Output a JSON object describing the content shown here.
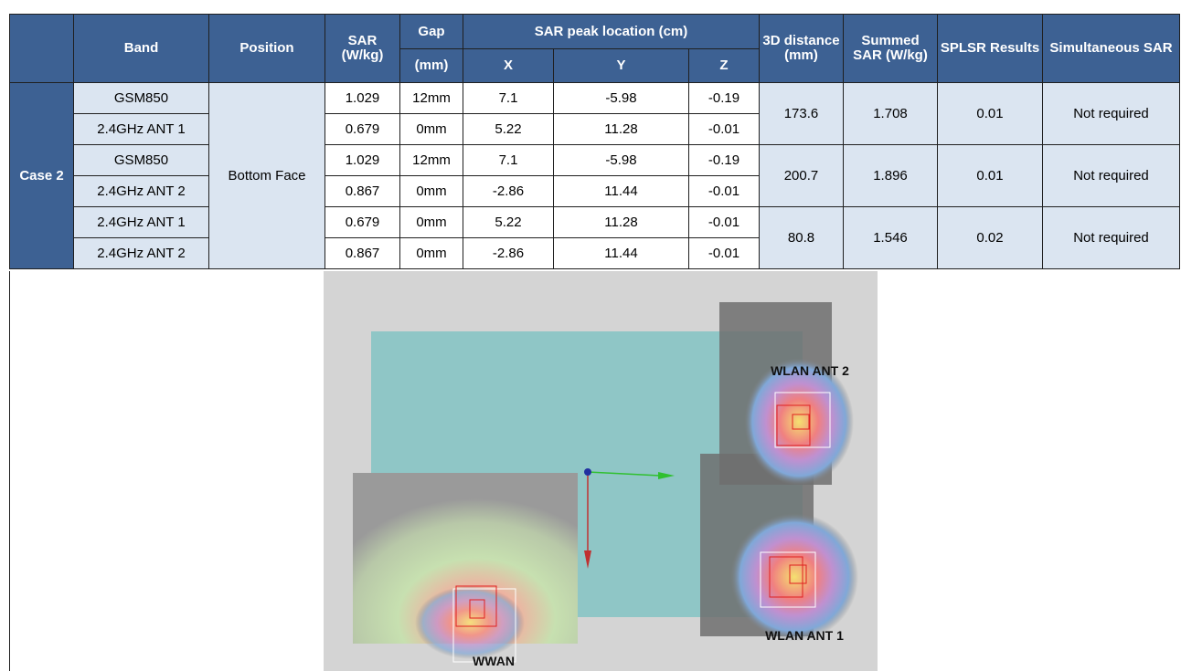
{
  "table": {
    "header_top": [
      "Band",
      "Position",
      "SAR (W/kg)",
      "Gap",
      "SAR peak location (cm)",
      "3D distance (mm)",
      "Summed SAR (W/kg)",
      "SPLSR Results",
      "Simultaneous SAR"
    ],
    "header_sub": [
      "(mm)",
      "X",
      "Y",
      "Z"
    ],
    "case": "Case 2",
    "position": "Bottom Face",
    "rows": [
      [
        "GSM850",
        "1.029",
        "12mm",
        "7.1",
        "-5.98",
        "-0.19"
      ],
      [
        "2.4GHz ANT 1",
        "0.679",
        "0mm",
        "5.22",
        "11.28",
        "-0.01"
      ],
      [
        "GSM850",
        "1.029",
        "12mm",
        "7.1",
        "-5.98",
        "-0.19"
      ],
      [
        "2.4GHz ANT 2",
        "0.867",
        "0mm",
        "-2.86",
        "11.44",
        "-0.01"
      ],
      [
        "2.4GHz ANT 1",
        "0.679",
        "0mm",
        "5.22",
        "11.28",
        "-0.01"
      ],
      [
        "2.4GHz ANT 2",
        "0.867",
        "0mm",
        "-2.86",
        "11.44",
        "-0.01"
      ]
    ],
    "groups": [
      [
        "173.6",
        "1.708",
        "0.01",
        "Not required"
      ],
      [
        "200.7",
        "1.896",
        "0.01",
        "Not required"
      ],
      [
        "80.8",
        "1.546",
        "0.02",
        "Not required"
      ]
    ]
  },
  "figure": {
    "labels": [
      "WLAN ANT 2",
      "WLAN ANT 1",
      "WWAN"
    ]
  }
}
